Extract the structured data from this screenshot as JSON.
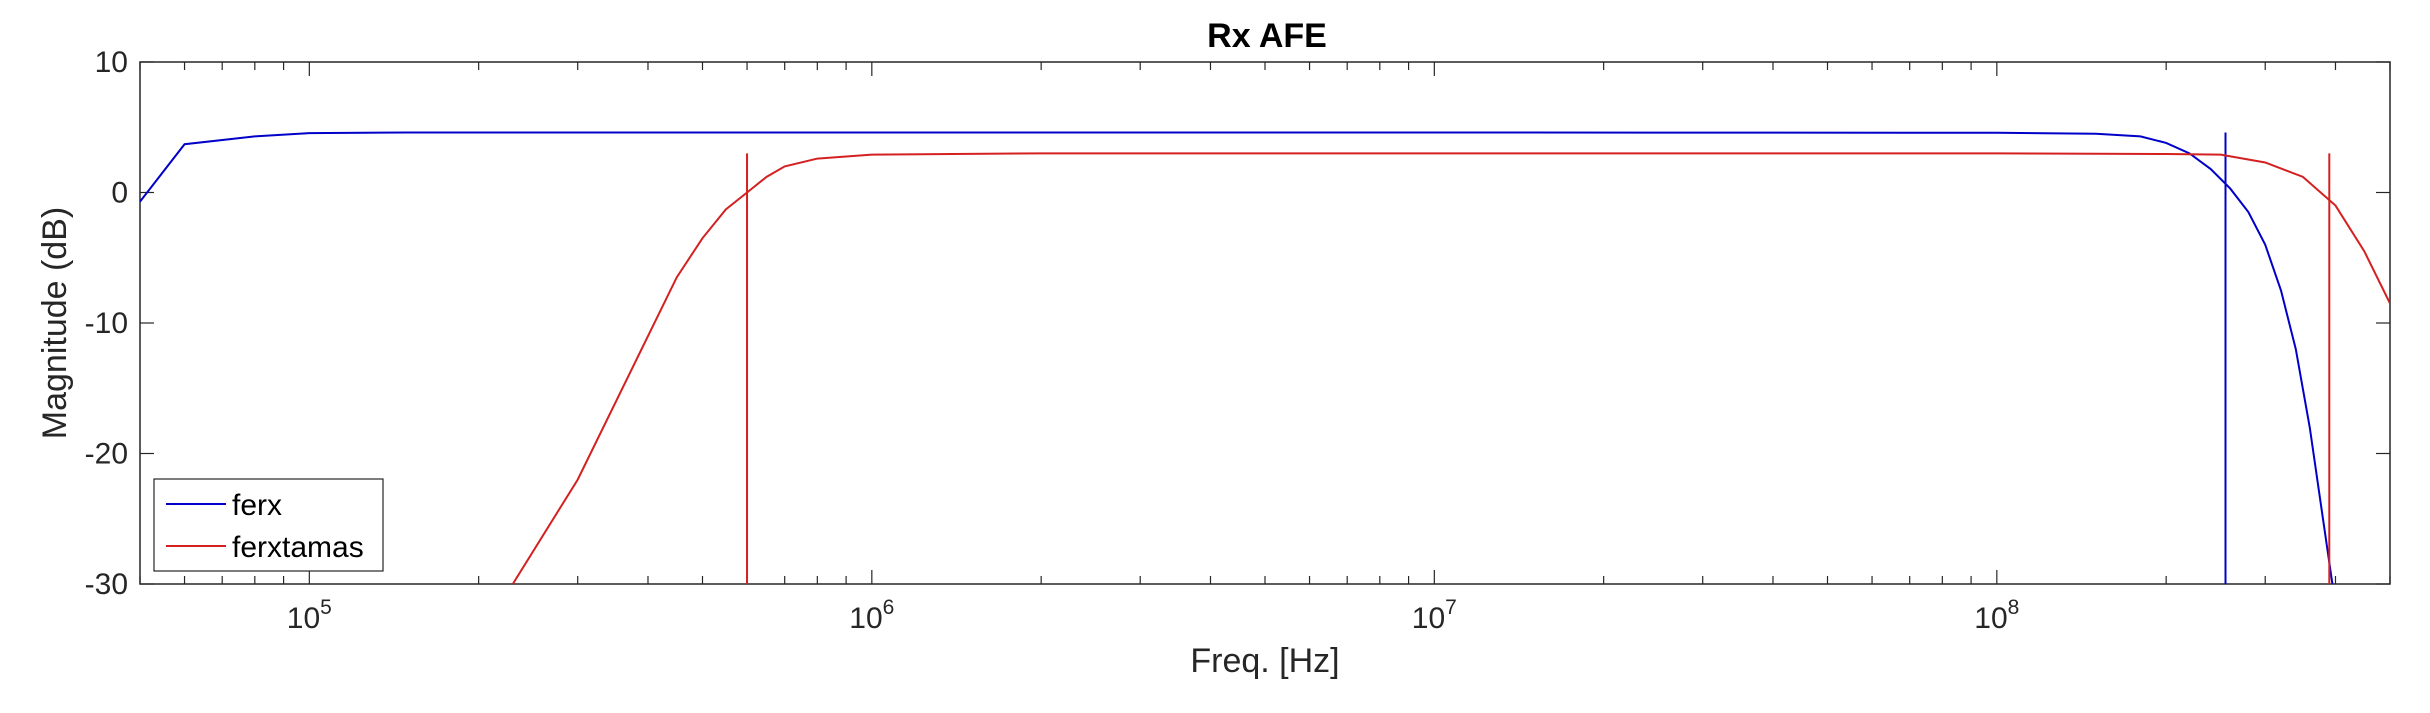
{
  "chart_data": {
    "type": "line",
    "title": "Rx AFE",
    "xlabel": "Freq. [Hz]",
    "ylabel": "Magnitude (dB)",
    "xscale": "log",
    "xlim": [
      50000,
      500000000
    ],
    "ylim": [
      -30,
      10
    ],
    "xticks": [
      {
        "value": 100000,
        "base": "10",
        "exp": "5"
      },
      {
        "value": 1000000,
        "base": "10",
        "exp": "6"
      },
      {
        "value": 10000000,
        "base": "10",
        "exp": "7"
      },
      {
        "value": 100000000,
        "base": "10",
        "exp": "8"
      }
    ],
    "yticks": [
      {
        "value": 10,
        "label": "10"
      },
      {
        "value": 0,
        "label": "0"
      },
      {
        "value": -10,
        "label": "-10"
      },
      {
        "value": -20,
        "label": "-20"
      },
      {
        "value": -30,
        "label": "-30"
      }
    ],
    "grid": false,
    "legend_position": "bottom-left",
    "series": [
      {
        "name": "ferx",
        "color": "#0000c8",
        "points": [
          [
            50000,
            -0.7
          ],
          [
            60000,
            3.7
          ],
          [
            80000,
            4.3
          ],
          [
            100000,
            4.55
          ],
          [
            150000,
            4.6
          ],
          [
            1000000,
            4.6
          ],
          [
            10000000,
            4.6
          ],
          [
            100000000,
            4.58
          ],
          [
            150000000,
            4.5
          ],
          [
            180000000,
            4.3
          ],
          [
            200000000,
            3.8
          ],
          [
            220000000,
            3.0
          ],
          [
            240000000,
            1.8
          ],
          [
            260000000,
            0.3
          ],
          [
            280000000,
            -1.5
          ],
          [
            300000000,
            -4.0
          ],
          [
            320000000,
            -7.5
          ],
          [
            340000000,
            -12.0
          ],
          [
            360000000,
            -18.0
          ],
          [
            380000000,
            -25.0
          ],
          [
            395000000,
            -30.0
          ]
        ],
        "marker_line": {
          "x": 255000000,
          "y_top": 4.6,
          "y_bottom": -30
        }
      },
      {
        "name": "ferxtamas",
        "color": "#d42020",
        "points": [
          [
            230000,
            -30.0
          ],
          [
            300000,
            -22.0
          ],
          [
            400000,
            -11.0
          ],
          [
            450000,
            -6.5
          ],
          [
            500000,
            -3.5
          ],
          [
            550000,
            -1.3
          ],
          [
            600000,
            0.0
          ],
          [
            650000,
            1.2
          ],
          [
            700000,
            2.0
          ],
          [
            800000,
            2.6
          ],
          [
            1000000,
            2.9
          ],
          [
            2000000,
            3.0
          ],
          [
            10000000,
            3.0
          ],
          [
            100000000,
            3.0
          ],
          [
            200000000,
            2.95
          ],
          [
            250000000,
            2.9
          ],
          [
            300000000,
            2.3
          ],
          [
            350000000,
            1.2
          ],
          [
            400000000,
            -1.0
          ],
          [
            450000000,
            -4.5
          ],
          [
            500000000,
            -8.5
          ]
        ],
        "marker_line": {
          "x": 600000,
          "y_top": 3.0,
          "y_bottom": -30
        },
        "marker_line_2": {
          "x": 390000000,
          "y_top": 3.0,
          "y_bottom": -30
        }
      }
    ]
  }
}
